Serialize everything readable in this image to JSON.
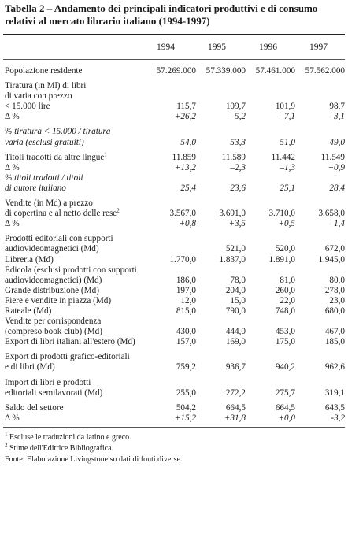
{
  "title_line1": "Tabella 2 – Andamento dei principali indicatori produttivi e di consumo",
  "title_line2": "relativi al mercato librario italiano (1994-1997)",
  "years": [
    "1994",
    "1995",
    "1996",
    "1997"
  ],
  "rows": [
    {
      "lines": [
        "Popolazione residente"
      ],
      "values": [
        "57.269.000",
        "57.339.000",
        "57.461.000",
        "57.562.000"
      ],
      "gap_before": true
    },
    {
      "lines": [
        "Tiratura (in Ml) di libri",
        "di varia con prezzo",
        "< 15.000 lire"
      ],
      "values": [
        "115,7",
        "109,7",
        "101,9",
        "98,7"
      ],
      "gap_before": true
    },
    {
      "lines": [
        "Δ %"
      ],
      "values": [
        "+26,2",
        "–5,2",
        "–7,1",
        "–3,1"
      ],
      "italic_values": true
    },
    {
      "lines": [
        "% tiratura < 15.000 / tiratura",
        "varia (esclusi gratuiti)"
      ],
      "values": [
        "54,0",
        "53,3",
        "51,0",
        "49,0"
      ],
      "italic": true,
      "gap_before": true
    },
    {
      "lines": [
        "Titoli tradotti da altre lingue"
      ],
      "sup": "1",
      "values": [
        "11.859",
        "11.589",
        "11.442",
        "11.549"
      ],
      "gap_before": true
    },
    {
      "lines": [
        "Δ %"
      ],
      "values": [
        "+13,2",
        "–2,3",
        "–1,3",
        "+0,9"
      ],
      "italic_values": true
    },
    {
      "lines": [
        "% titoli tradotti / titoli",
        "di autore italiano"
      ],
      "values": [
        "25,4",
        "23,6",
        "25,1",
        "28,4"
      ],
      "italic": true
    },
    {
      "lines": [
        "Vendite (in Md) a prezzo",
        "di copertina e al netto delle rese"
      ],
      "sup": "2",
      "values": [
        "3.567,0",
        "3.691,0",
        "3.710,0",
        "3.658,0"
      ],
      "gap_before": true
    },
    {
      "lines": [
        "Δ %"
      ],
      "values": [
        "+0,8",
        "+3,5",
        "+0,5",
        "–1,4"
      ],
      "italic_values": true
    },
    {
      "lines": [
        "Prodotti editoriali con supporti",
        "audiovideomagnetici (Md)"
      ],
      "values": [
        "",
        "521,0",
        "520,0",
        "672,0"
      ],
      "gap_before": true
    },
    {
      "lines": [
        "Libreria (Md)"
      ],
      "values": [
        "1.770,0",
        "1.837,0",
        "1.891,0",
        "1.945,0"
      ]
    },
    {
      "lines": [
        "Edicola (esclusi prodotti con supporti",
        "audiovideomagnetici) (Md)"
      ],
      "values": [
        "186,0",
        "78,0",
        "81,0",
        "80,0"
      ]
    },
    {
      "lines": [
        "Grande distribuzione (Md)"
      ],
      "values": [
        "197,0",
        "204,0",
        "260,0",
        "278,0"
      ]
    },
    {
      "lines": [
        "Fiere e vendite in piazza (Md)"
      ],
      "values": [
        "12,0",
        "15,0",
        "22,0",
        "23,0"
      ]
    },
    {
      "lines": [
        "Rateale (Md)"
      ],
      "values": [
        "815,0",
        "790,0",
        "748,0",
        "680,0"
      ]
    },
    {
      "lines": [
        "Vendite per corrispondenza",
        "(compreso book club) (Md)"
      ],
      "values": [
        "430,0",
        "444,0",
        "453,0",
        "467,0"
      ]
    },
    {
      "lines": [
        "Export di libri italiani all'estero (Md)"
      ],
      "values": [
        "157,0",
        "169,0",
        "175,0",
        "185,0"
      ]
    },
    {
      "lines": [
        "Export di prodotti grafico-editoriali",
        "e di libri  (Md)"
      ],
      "values": [
        "759,2",
        "936,7",
        "940,2",
        "962,6"
      ],
      "gap_before": true
    },
    {
      "lines": [
        "Import di libri e prodotti",
        "editoriali semilavorati (Md)"
      ],
      "values": [
        "255,0",
        "272,2",
        "275,7",
        "319,1"
      ],
      "gap_before": true
    },
    {
      "lines": [
        "Saldo del settore"
      ],
      "values": [
        "504,2",
        "664,5",
        "664,5",
        "643,5"
      ],
      "gap_before": true
    },
    {
      "lines": [
        "Δ %"
      ],
      "values": [
        "+15,2",
        "+31,8",
        "+0,0",
        "-3,2"
      ],
      "italic_values": true
    }
  ],
  "notes": [
    {
      "sup": "1",
      "text": " Escluse le traduzioni da latino e greco."
    },
    {
      "sup": "2",
      "text": " Stime dell'Editrice Bibliografica."
    },
    {
      "sup": "",
      "text": "Fonte: Elaborazione Livingstone su dati di fonti diverse."
    }
  ]
}
